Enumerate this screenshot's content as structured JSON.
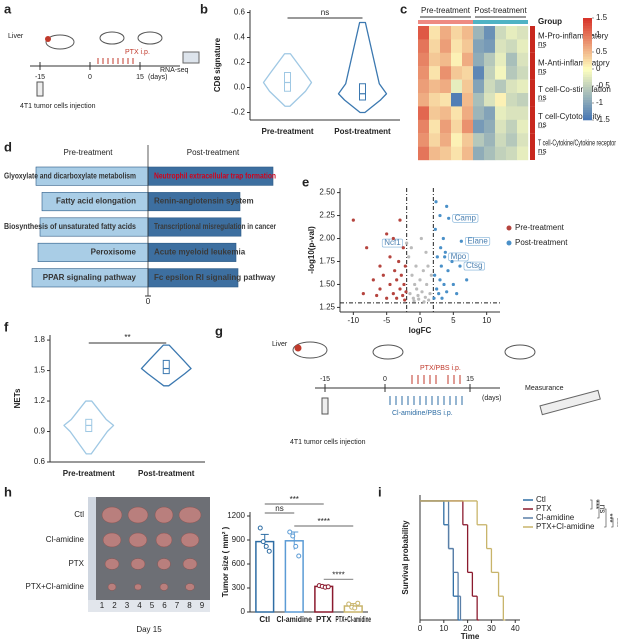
{
  "panel_labels": [
    "a",
    "b",
    "c",
    "d",
    "e",
    "f",
    "g",
    "h",
    "i"
  ],
  "scheme_a": {
    "liver": "Liver",
    "drug": "PTX i.p.",
    "days": [
      "-15",
      "0",
      "15"
    ],
    "unit": "(days)",
    "readout": "RNA-seq",
    "injection": "4T1 tumor cells injection"
  },
  "scheme_g": {
    "liver": "Liver",
    "drug": "PTX/PBS i.p.",
    "days": [
      "-15",
      "0",
      "15"
    ],
    "unit": "(days)",
    "readout": "Measurance",
    "second_drug": "Cl-amidine/PBS i.p.",
    "injection": "4T1 tumor cells injection"
  },
  "tumor_photo": {
    "rows": [
      "Ctl",
      "Cl-amidine",
      "PTX",
      "PTX+Cl-amidine"
    ],
    "ruler": [
      "1",
      "2",
      "3",
      "4",
      "5",
      "6",
      "7",
      "8",
      "9"
    ],
    "caption": "Day 15"
  },
  "chart_data": [
    {
      "type": "violin",
      "ylabel": "CD8 signature",
      "categories": [
        "Pre-treatment",
        "Post-treatment"
      ],
      "colors": [
        "#9fc8e4",
        "#3b78b0"
      ],
      "min": [
        -0.15,
        -0.2
      ],
      "q1": [
        -0.03,
        -0.1
      ],
      "median": [
        0.04,
        -0.05
      ],
      "q3": [
        0.12,
        0.03
      ],
      "max": [
        0.27,
        0.52
      ],
      "ylim": [
        -0.26,
        0.62
      ],
      "yticks": [
        -0.2,
        {
          "value": 0,
          "label": "0.0"
        },
        0.2,
        0.4,
        0.6
      ],
      "significance": "ns"
    },
    {
      "type": "heatmap",
      "group_header": "Group",
      "group_color": "#c8281e",
      "column_groups": [
        {
          "name": "Pre-treatment",
          "color": "#ee8a82"
        },
        {
          "name": "Post-treatment",
          "color": "#4fb3c4"
        }
      ],
      "colors": [
        "#4575b4",
        "#ffffbf",
        "#d73027"
      ],
      "clim": [
        -1.5,
        1.5
      ],
      "cticks": [
        1.5,
        1,
        0.5,
        0,
        -0.5,
        -1,
        -1.5
      ],
      "row_groups": [
        {
          "name": "M-Pro-inflammatory",
          "significance": "ns",
          "values": [
            [
              [
                1.2,
                0.2,
                0.6,
                0.3,
                0.5
              ],
              [
                -0.8,
                -1.2,
                -0.4,
                -0.2,
                -0.3
              ]
            ],
            [
              [
                1.0,
                0.3,
                0.7,
                0.2,
                0.4
              ],
              [
                -1.0,
                -1.1,
                -0.3,
                -0.4,
                -0.2
              ]
            ]
          ]
        },
        {
          "name": "M-Anti-inflammatory",
          "significance": "ns",
          "values": [
            [
              [
                0.9,
                0.4,
                0.5,
                0.1,
                0.6
              ],
              [
                -0.9,
                -0.6,
                -0.2,
                -0.7,
                -0.3
              ]
            ],
            [
              [
                0.8,
                0.2,
                0.8,
                0.4,
                0.3
              ],
              [
                -1.3,
                -0.5,
                -0.1,
                -0.6,
                -0.4
              ]
            ]
          ]
        },
        {
          "name": "T cell-Co-stimulation",
          "significance": "ns",
          "values": [
            [
              [
                0.7,
                0.5,
                0.6,
                -0.2,
                0.4
              ],
              [
                -1.0,
                -0.4,
                -0.6,
                -0.3,
                -0.2
              ]
            ],
            [
              [
                0.6,
                0.3,
                0.2,
                -1.4,
                0.5
              ],
              [
                -0.7,
                -0.3,
                0.1,
                -0.4,
                -0.5
              ]
            ]
          ]
        },
        {
          "name": "T cell-Cytotoxicity",
          "significance": "ns",
          "values": [
            [
              [
                1.1,
                0.4,
                0.5,
                0.2,
                0.6
              ],
              [
                -0.8,
                -1.0,
                -0.2,
                -0.3,
                -0.3
              ]
            ],
            [
              [
                0.9,
                0.2,
                0.7,
                0.3,
                0.8
              ],
              [
                -1.1,
                -0.9,
                -0.3,
                -0.5,
                -0.2
              ]
            ]
          ]
        },
        {
          "name": "T cell-Cytokine/Cytokine receptor",
          "significance": "ns",
          "values": [
            [
              [
                0.8,
                0.3,
                0.6,
                0.1,
                0.4
              ],
              [
                -0.6,
                -0.8,
                -0.4,
                -0.6,
                -0.3
              ]
            ],
            [
              [
                1.0,
                0.5,
                0.4,
                0.2,
                0.5
              ],
              [
                -0.9,
                -0.7,
                -0.5,
                -0.4,
                -0.2
              ]
            ]
          ]
        }
      ]
    },
    {
      "type": "diverging_bar",
      "xlim": [
        -12,
        13
      ],
      "xticks": [
        0
      ],
      "series": [
        {
          "name": "Pre-treatment",
          "color": "#a9cde6",
          "categories": [
            "Glyoxylate and dicarboxylate metabolism",
            "Fatty acid elongation",
            "Biosynthesis of unsaturated fatty acids",
            "Peroxisome",
            "PPAR signaling pathway"
          ],
          "values": [
            -11.2,
            -10.6,
            -10.8,
            -11,
            -11.6
          ],
          "label_colors": [
            "#333333",
            "#333333",
            "#333333",
            "#333333",
            "#333333"
          ]
        },
        {
          "name": "Post-treatment",
          "color": "#3d6fa0",
          "categories": [
            "Neutrophil extracellular trap formation",
            "Renin-angiotensin system",
            "Transcriptional misregulation in cancer",
            "Acute myeloid leukemia",
            "Fc epsilon RI signaling pathway"
          ],
          "values": [
            12.5,
            9.2,
            9.3,
            8.8,
            9
          ],
          "label_colors": [
            "#d0021b",
            "#3a3a3a",
            "#3a3a3a",
            "#3a3a3a",
            "#3a3a3a"
          ]
        }
      ]
    },
    {
      "type": "scatter",
      "xlabel": "logFC",
      "ylabel": "-log10(p-val)",
      "xlim": [
        -12,
        12
      ],
      "ylim": [
        1.2,
        2.55
      ],
      "xticks": [
        -10,
        -5,
        0,
        5,
        10
      ],
      "yticks": [
        1.25,
        {
          "value": 1.5,
          "label": "1.50"
        },
        1.75,
        {
          "value": 2,
          "label": "2.00"
        },
        2.25,
        {
          "value": 2.5,
          "label": "2.50"
        }
      ],
      "thresholds": {
        "x": [
          -2,
          2
        ],
        "y": 1.3
      },
      "series": [
        {
          "color": "#bbbbbb",
          "x": [
            -1.5,
            -1.2,
            -1,
            -0.8,
            -0.5,
            -0.3,
            0,
            0.3,
            0.5,
            0.8,
            1,
            1.2,
            1.5,
            -1.7,
            -2,
            -0.6,
            0.2,
            1.7,
            -1.3,
            0.9,
            -0.9,
            0.6,
            -0.2,
            1.3
          ],
          "values": [
            1.4,
            1.6,
            1.35,
            1.5,
            1.45,
            1.38,
            1.55,
            1.42,
            1.65,
            1.36,
            1.5,
            1.7,
            1.4,
            1.8,
            1.95,
            1.7,
            2.0,
            1.6,
            1.9,
            1.85,
            1.32,
            1.31,
            1.34,
            1.33
          ],
          "labels": [
            null,
            null,
            null,
            null,
            null,
            null,
            null,
            null,
            null,
            null,
            null,
            null,
            null,
            null,
            "Ncf1",
            null,
            null,
            null,
            null,
            null,
            null,
            null,
            null,
            null
          ]
        },
        {
          "name": "Pre-treatment",
          "color": "#b5443e",
          "x": [
            -10,
            -8,
            -7,
            -6,
            -6,
            -5.5,
            -5,
            -4.5,
            -4.5,
            -4,
            -4,
            -3.8,
            -3.5,
            -3.5,
            -3.2,
            -3,
            -3,
            -2.8,
            -2.6,
            -2.5,
            -2.4,
            -2.3,
            -2.2,
            -2.1,
            -6.5,
            -8.5,
            -5
          ],
          "values": [
            2.2,
            1.9,
            1.55,
            1.7,
            1.45,
            1.6,
            1.35,
            1.8,
            1.5,
            2.0,
            1.4,
            1.65,
            1.55,
            1.35,
            1.75,
            1.45,
            2.2,
            1.6,
            1.38,
            1.9,
            1.5,
            1.33,
            1.7,
            1.42,
            1.38,
            1.4,
            2.05
          ]
        },
        {
          "name": "Post-treatment",
          "color": "#4a90c8",
          "x": [
            2.1,
            2.2,
            2.3,
            2.5,
            2.6,
            2.8,
            3,
            3,
            3.2,
            3.3,
            3.5,
            3.6,
            3.8,
            4,
            4,
            4.2,
            4.3,
            6.2,
            3.7,
            6,
            5,
            5.5,
            7,
            2.4,
            4.8,
            3.1
          ],
          "values": [
            1.35,
            1.6,
            2.1,
            1.45,
            1.8,
            1.4,
            2.25,
            1.55,
            1.7,
            1.35,
            2.0,
            1.5,
            1.85,
            1.42,
            2.35,
            1.65,
            2.22,
            1.97,
            1.8,
            1.7,
            1.5,
            1.4,
            1.55,
            2.4,
            1.75,
            1.9
          ],
          "labels": [
            null,
            null,
            null,
            null,
            null,
            null,
            null,
            null,
            null,
            null,
            null,
            null,
            null,
            null,
            null,
            null,
            "Camp",
            "Elane",
            "Mpo",
            "Ctsg",
            null,
            null,
            null,
            null,
            null,
            null
          ]
        }
      ]
    },
    {
      "type": "violin",
      "ylabel": "NETs",
      "categories": [
        "Pre-treatment",
        "Post-treatment"
      ],
      "colors": [
        "#9fc8e4",
        "#3b78b0"
      ],
      "min": [
        0.68,
        1.35
      ],
      "q1": [
        0.9,
        1.47
      ],
      "median": [
        0.96,
        1.52
      ],
      "q3": [
        1.02,
        1.6
      ],
      "max": [
        1.2,
        1.75
      ],
      "ylim": [
        0.6,
        1.85
      ],
      "yticks": [
        0.6,
        0.9,
        1.2,
        1.5,
        1.8
      ],
      "significance": "**"
    },
    {
      "type": "bar",
      "ylabel": "Tumor size ( mm² )",
      "categories": [
        "Ctl",
        "Cl-amidine",
        "PTX",
        "PTX+Cl-amidine"
      ],
      "values": [
        880,
        890,
        320,
        75
      ],
      "errors": [
        90,
        110,
        15,
        30
      ],
      "points": [
        [
          1050,
          880,
          820,
          760
        ],
        [
          1000,
          950,
          820,
          700
        ],
        [
          330,
          320,
          310,
          315
        ],
        [
          100,
          60,
          50,
          110
        ]
      ],
      "colors": [
        "#2e6da4",
        "#5b9bd5",
        "#8b1a2e",
        "#c8b46a"
      ],
      "ylim": [
        0,
        1250
      ],
      "yticks": [
        0,
        300,
        600,
        900,
        1200
      ],
      "significance": [
        {
          "label": "***",
          "pair": [
            0,
            2
          ]
        },
        {
          "label": "ns",
          "pair": [
            0,
            1
          ]
        },
        {
          "label": "****",
          "pair": [
            1,
            3
          ]
        },
        {
          "label": "****",
          "pair": [
            2,
            3
          ]
        }
      ]
    },
    {
      "type": "step",
      "xlabel": "Time",
      "ylabel": "Survival probability",
      "xlim": [
        0,
        42
      ],
      "ylim": [
        0,
        1.05
      ],
      "xticks": [
        0,
        10,
        20,
        30,
        40
      ],
      "series": [
        {
          "name": "Ctl",
          "color": "#2e6da4",
          "x": [
            0,
            10,
            12,
            14,
            16
          ],
          "values": [
            1,
            0.8,
            0.6,
            0.2,
            0
          ]
        },
        {
          "name": "PTX",
          "color": "#8b1a2e",
          "x": [
            0,
            18,
            20,
            22,
            24
          ],
          "values": [
            1,
            0.8,
            0.4,
            0.2,
            0
          ]
        },
        {
          "name": "Cl-amidine",
          "color": "#5a7fa8",
          "x": [
            0,
            12,
            14,
            16,
            17
          ],
          "values": [
            1,
            0.6,
            0.4,
            0.2,
            0
          ]
        },
        {
          "name": "PTX+Cl-amidine",
          "color": "#c8b46a",
          "x": [
            0,
            24,
            28,
            30,
            33,
            35
          ],
          "values": [
            1,
            0.8,
            0.6,
            0.4,
            0.2,
            0
          ]
        }
      ],
      "significance": [
        {
          "label": "***",
          "pair": [
            0,
            1
          ]
        },
        {
          "label": "ns",
          "pair": [
            0,
            2
          ]
        },
        {
          "label": "***",
          "pair": [
            1,
            3
          ]
        },
        {
          "label": "***",
          "pair": [
            2,
            3
          ]
        }
      ]
    }
  ]
}
